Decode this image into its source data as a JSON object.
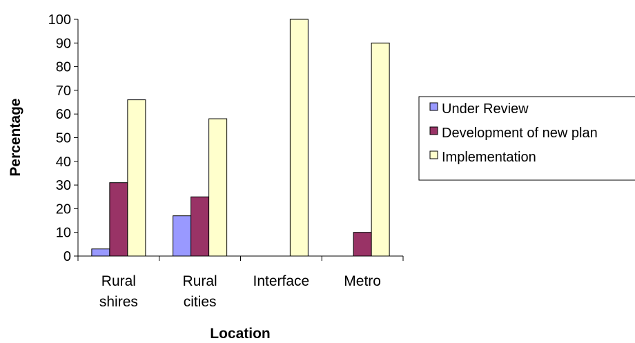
{
  "chart_data": {
    "type": "bar",
    "title": "",
    "xlabel": "Location",
    "ylabel": "Percentage",
    "ylim": [
      0,
      100
    ],
    "yticks": [
      0,
      10,
      20,
      30,
      40,
      50,
      60,
      70,
      80,
      90,
      100
    ],
    "categories": [
      [
        "Rural",
        "shires"
      ],
      [
        "Rural",
        "cities"
      ],
      [
        "Interface"
      ],
      [
        "Metro"
      ]
    ],
    "series": [
      {
        "name": "Under Review",
        "color": "#9999ff",
        "values": [
          3,
          17,
          0,
          0
        ]
      },
      {
        "name": "Development of new plan",
        "color": "#993366",
        "values": [
          31,
          25,
          0,
          10
        ]
      },
      {
        "name": "Implementation",
        "color": "#ffffcc",
        "values": [
          66,
          58,
          100,
          90
        ]
      }
    ],
    "grid": false,
    "legend": "right"
  }
}
